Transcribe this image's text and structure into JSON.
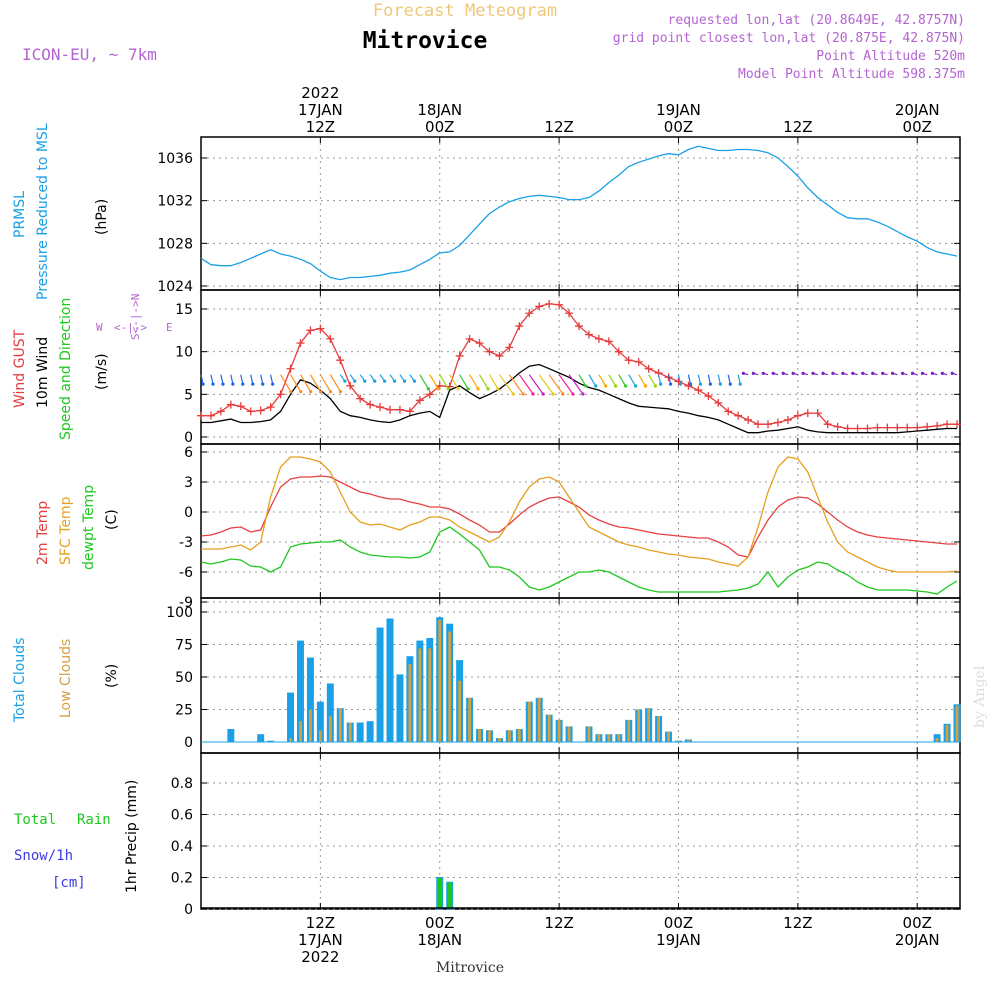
{
  "header": {
    "forecast_title": "Forecast Meteogram",
    "location_title": "Mitrovice",
    "model": "ICON-EU, ~ 7km",
    "requested": "requested lon,lat (20.8649E, 42.8757N)",
    "grid_point": "grid point closest lon,lat (20.875E, 42.875N)",
    "point_alt": "Point Altitude 520m",
    "model_alt": "Model Point Altitude 598.375m"
  },
  "top_ticks": [
    {
      "t": 12,
      "lines": [
        "2022",
        "17JAN",
        "12Z"
      ]
    },
    {
      "t": 24,
      "lines": [
        "18JAN",
        "00Z"
      ]
    },
    {
      "t": 36,
      "lines": [
        "12Z"
      ]
    },
    {
      "t": 48,
      "lines": [
        "19JAN",
        "00Z"
      ]
    },
    {
      "t": 60,
      "lines": [
        "12Z"
      ]
    },
    {
      "t": 72,
      "lines": [
        "20JAN",
        "00Z"
      ]
    }
  ],
  "bottom_ticks": [
    {
      "t": 12,
      "lines": [
        "12Z",
        "17JAN",
        "2022"
      ]
    },
    {
      "t": 24,
      "lines": [
        "00Z",
        "18JAN"
      ]
    },
    {
      "t": 36,
      "lines": [
        "12Z"
      ]
    },
    {
      "t": 48,
      "lines": [
        "00Z",
        "19JAN"
      ]
    },
    {
      "t": 60,
      "lines": [
        "12Z"
      ]
    },
    {
      "t": 72,
      "lines": [
        "00Z",
        "20JAN"
      ]
    }
  ],
  "footer_location": "Mitrovice",
  "watermark": "by Angel",
  "labels": {
    "p1": [
      "PRMSL",
      "Pressure Reduced to MSL",
      "(hPa)"
    ],
    "p2": [
      "Wind GUST",
      "10m Wind",
      "Speed and Direction",
      "(m/s)"
    ],
    "p2_compass": [
      "N",
      "S",
      "W",
      "E"
    ],
    "p3": [
      "2m Temp",
      "SFC Temp",
      "dewpt Temp",
      "(C)"
    ],
    "p4": [
      "Total Clouds",
      "Low Clouds",
      "(%)"
    ],
    "p5": [
      "Total",
      "Rain",
      "Snow/1h",
      "[cm]",
      "1hr Precip (mm)"
    ]
  },
  "colors": {
    "pressure": "#1aa0e6",
    "gust": "#e63c3c",
    "wind": "#000000",
    "t2m": "#e64040",
    "tsfc": "#e6a020",
    "dew": "#1ec81e",
    "total_clouds": "#1aa0e6",
    "low_clouds": "#d4a040",
    "rain": "#1ec81e",
    "snow": "#3c3ce6",
    "header_purple": "#b464d2",
    "title_tan": "#f0c878"
  },
  "chart_data": [
    {
      "type": "line",
      "title": "PRMSL Pressure Reduced to MSL",
      "ylabel": "(hPa)",
      "ylim": [
        1024,
        1038
      ],
      "yticks": [
        1024,
        1028,
        1032,
        1036
      ],
      "x": [
        0,
        1,
        2,
        3,
        4,
        5,
        6,
        7,
        8,
        9,
        10,
        11,
        12,
        13,
        14,
        15,
        16,
        17,
        18,
        19,
        20,
        21,
        22,
        23,
        24,
        25,
        26,
        27,
        28,
        29,
        30,
        31,
        32,
        33,
        34,
        35,
        36,
        37,
        38,
        39,
        40,
        41,
        42,
        43,
        44,
        45,
        46,
        47,
        48,
        49,
        50,
        51,
        52,
        53,
        54,
        55,
        56,
        57,
        58,
        59,
        60,
        61,
        62,
        63,
        64,
        65,
        66,
        67,
        68,
        69,
        70,
        71,
        72,
        73,
        74,
        75,
        76
      ],
      "series": [
        {
          "values": [
            1026.6,
            1026.0,
            1025.9,
            1025.9,
            1026.2,
            1026.6,
            1027.0,
            1027.4,
            1027.0,
            1026.8,
            1026.5,
            1026.1,
            1025.4,
            1024.8,
            1024.6,
            1024.8,
            1024.8,
            1024.9,
            1025.0,
            1025.2,
            1025.3,
            1025.5,
            1026.0,
            1026.5,
            1027.1,
            1027.2,
            1027.8,
            1028.8,
            1029.8,
            1030.8,
            1031.4,
            1031.9,
            1032.2,
            1032.4,
            1032.5,
            1032.4,
            1032.3,
            1032.1,
            1032.1,
            1032.3,
            1032.9,
            1033.7,
            1034.4,
            1035.2,
            1035.6,
            1035.9,
            1036.2,
            1036.4,
            1036.3,
            1036.8,
            1037.1,
            1036.9,
            1036.7,
            1036.7,
            1036.8,
            1036.8,
            1036.7,
            1036.5,
            1036.0,
            1035.2,
            1034.3,
            1033.2,
            1032.3,
            1031.6,
            1030.9,
            1030.4,
            1030.3,
            1030.3,
            1030.0,
            1029.6,
            1029.1,
            1028.6,
            1028.2,
            1027.6,
            1027.2,
            1027.0,
            1026.8
          ]
        }
      ]
    },
    {
      "type": "line",
      "title": "Wind GUST / 10m Wind Speed and Direction",
      "ylabel": "(m/s)",
      "ylim": [
        0,
        17
      ],
      "yticks": [
        0,
        5,
        10,
        15
      ],
      "x": [
        0,
        1,
        2,
        3,
        4,
        5,
        6,
        7,
        8,
        9,
        10,
        11,
        12,
        13,
        14,
        15,
        16,
        17,
        18,
        19,
        20,
        21,
        22,
        23,
        24,
        25,
        26,
        27,
        28,
        29,
        30,
        31,
        32,
        33,
        34,
        35,
        36,
        37,
        38,
        39,
        40,
        41,
        42,
        43,
        44,
        45,
        46,
        47,
        48,
        49,
        50,
        51,
        52,
        53,
        54,
        55,
        56,
        57,
        58,
        59,
        60,
        61,
        62,
        63,
        64,
        65,
        66,
        67,
        68,
        69,
        70,
        71,
        72,
        73,
        74,
        75,
        76
      ],
      "series": [
        {
          "name": "Wind GUST",
          "values": [
            2.5,
            2.5,
            3.0,
            3.8,
            3.6,
            3.0,
            3.1,
            3.5,
            5.0,
            8.0,
            11.0,
            12.5,
            12.7,
            11.5,
            9.0,
            6.0,
            4.5,
            3.8,
            3.5,
            3.2,
            3.2,
            3.0,
            4.3,
            5.0,
            6.0,
            5.9,
            9.5,
            11.5,
            11.0,
            10.0,
            9.5,
            10.5,
            13.0,
            14.5,
            15.3,
            15.6,
            15.5,
            14.5,
            13.0,
            12.0,
            11.5,
            11.2,
            10.0,
            9.0,
            8.8,
            8.0,
            7.5,
            7.0,
            6.5,
            6.0,
            5.5,
            4.8,
            4.0,
            3.0,
            2.5,
            2.0,
            1.5,
            1.5,
            1.7,
            2.0,
            2.5,
            2.8,
            2.8,
            1.5,
            1.2,
            1.0,
            1.0,
            1.0,
            1.1,
            1.1,
            1.1,
            1.1,
            1.1,
            1.2,
            1.3,
            1.5,
            1.5
          ]
        },
        {
          "name": "10m Wind",
          "values": [
            1.7,
            1.7,
            1.9,
            2.1,
            1.7,
            1.7,
            1.8,
            2.0,
            3.0,
            5.0,
            6.7,
            6.3,
            5.5,
            4.5,
            3.0,
            2.5,
            2.3,
            2.0,
            1.8,
            1.7,
            2.0,
            2.5,
            2.8,
            3.0,
            2.3,
            5.5,
            6.0,
            5.2,
            4.5,
            5.0,
            5.6,
            6.5,
            7.5,
            8.3,
            8.5,
            8.0,
            7.5,
            7.0,
            6.3,
            5.8,
            5.5,
            5.0,
            4.5,
            4.0,
            3.6,
            3.5,
            3.4,
            3.3,
            3.0,
            2.8,
            2.5,
            2.3,
            2.0,
            1.5,
            1.0,
            0.5,
            0.5,
            0.7,
            0.8,
            1.0,
            1.2,
            0.8,
            0.6,
            0.5,
            0.5,
            0.5,
            0.5,
            0.5,
            0.5,
            0.5,
            0.5,
            0.6,
            0.7,
            0.8,
            0.9,
            1.0,
            1.0
          ]
        }
      ]
    },
    {
      "type": "line",
      "title": "2m Temp / SFC Temp / dewpt Temp",
      "ylabel": "(C)",
      "ylim": [
        -9,
        6
      ],
      "yticks": [
        -9,
        -6,
        -3,
        0,
        3,
        6
      ],
      "x": [
        0,
        1,
        2,
        3,
        4,
        5,
        6,
        7,
        8,
        9,
        10,
        11,
        12,
        13,
        14,
        15,
        16,
        17,
        18,
        19,
        20,
        21,
        22,
        23,
        24,
        25,
        26,
        27,
        28,
        29,
        30,
        31,
        32,
        33,
        34,
        35,
        36,
        37,
        38,
        39,
        40,
        41,
        42,
        43,
        44,
        45,
        46,
        47,
        48,
        49,
        50,
        51,
        52,
        53,
        54,
        55,
        56,
        57,
        58,
        59,
        60,
        61,
        62,
        63,
        64,
        65,
        66,
        67,
        68,
        69,
        70,
        71,
        72,
        73,
        74,
        75,
        76
      ],
      "series": [
        {
          "name": "2m Temp",
          "values": [
            -2.4,
            -2.3,
            -2.0,
            -1.6,
            -1.5,
            -2.0,
            -1.8,
            0.5,
            2.5,
            3.3,
            3.5,
            3.5,
            3.6,
            3.5,
            3.0,
            2.5,
            2.0,
            1.8,
            1.5,
            1.3,
            1.3,
            1.0,
            0.8,
            0.5,
            0.5,
            0.3,
            -0.2,
            -0.8,
            -1.3,
            -2.0,
            -2.0,
            -1.2,
            -0.3,
            0.5,
            1.0,
            1.4,
            1.5,
            1.0,
            0.5,
            -0.3,
            -0.8,
            -1.2,
            -1.5,
            -1.6,
            -1.8,
            -2.0,
            -2.2,
            -2.3,
            -2.4,
            -2.5,
            -2.6,
            -2.6,
            -3.0,
            -3.5,
            -4.3,
            -4.5,
            -2.5,
            -0.8,
            0.5,
            1.2,
            1.5,
            1.4,
            0.8,
            0.0,
            -0.8,
            -1.5,
            -2.0,
            -2.3,
            -2.5,
            -2.6,
            -2.7,
            -2.8,
            -2.9,
            -3.0,
            -3.1,
            -3.2,
            -3.2
          ]
        },
        {
          "name": "SFC Temp",
          "values": [
            -3.7,
            -3.7,
            -3.7,
            -3.5,
            -3.3,
            -3.8,
            -3.0,
            1.5,
            4.5,
            5.5,
            5.5,
            5.3,
            5.0,
            4.0,
            2.0,
            0.0,
            -1.0,
            -1.3,
            -1.2,
            -1.5,
            -1.8,
            -1.3,
            -1.0,
            -0.5,
            -0.5,
            -0.8,
            -1.5,
            -2.0,
            -2.5,
            -3.0,
            -2.5,
            -1.0,
            1.0,
            2.5,
            3.3,
            3.5,
            3.0,
            1.5,
            0.0,
            -1.5,
            -2.0,
            -2.5,
            -3.0,
            -3.3,
            -3.5,
            -3.8,
            -4.0,
            -4.2,
            -4.3,
            -4.5,
            -4.6,
            -4.7,
            -5.0,
            -5.2,
            -5.4,
            -4.5,
            -1.5,
            2.0,
            4.5,
            5.5,
            5.3,
            4.0,
            1.5,
            -1.0,
            -3.0,
            -4.0,
            -4.5,
            -5.0,
            -5.5,
            -5.8,
            -6.0,
            -6.0,
            -6.0,
            -6.0,
            -6.0,
            -6.0,
            -5.9
          ]
        },
        {
          "name": "dewpt Temp",
          "values": [
            -5.0,
            -5.2,
            -5.0,
            -4.7,
            -4.8,
            -5.4,
            -5.5,
            -6.0,
            -5.5,
            -3.5,
            -3.2,
            -3.1,
            -3.0,
            -3.0,
            -2.8,
            -3.5,
            -4.0,
            -4.3,
            -4.4,
            -4.5,
            -4.5,
            -4.6,
            -4.5,
            -4.0,
            -2.0,
            -1.5,
            -2.2,
            -3.0,
            -3.8,
            -5.5,
            -5.5,
            -5.8,
            -6.5,
            -7.5,
            -7.8,
            -7.5,
            -7.0,
            -6.5,
            -6.0,
            -6.0,
            -5.8,
            -6.0,
            -6.5,
            -7.0,
            -7.5,
            -7.8,
            -8.0,
            -8.0,
            -8.0,
            -8.0,
            -8.0,
            -8.0,
            -8.0,
            -7.9,
            -7.8,
            -7.6,
            -7.2,
            -6.0,
            -7.5,
            -6.5,
            -5.8,
            -5.5,
            -5.0,
            -5.2,
            -5.8,
            -6.3,
            -7.0,
            -7.5,
            -7.8,
            -7.8,
            -7.8,
            -7.8,
            -7.9,
            -8.0,
            -8.2,
            -7.5,
            -6.9
          ]
        }
      ]
    },
    {
      "type": "bar",
      "title": "Total Clouds / Low Clouds",
      "ylabel": "(%)",
      "ylim": [
        -4,
        104
      ],
      "yticks": [
        0,
        25,
        50,
        75,
        100
      ],
      "x": [
        0,
        1,
        2,
        3,
        4,
        5,
        6,
        7,
        8,
        9,
        10,
        11,
        12,
        13,
        14,
        15,
        16,
        17,
        18,
        19,
        20,
        21,
        22,
        23,
        24,
        25,
        26,
        27,
        28,
        29,
        30,
        31,
        32,
        33,
        34,
        35,
        36,
        37,
        38,
        39,
        40,
        41,
        42,
        43,
        44,
        45,
        46,
        47,
        48,
        49,
        50,
        51,
        52,
        53,
        54,
        55,
        56,
        57,
        58,
        59,
        60,
        61,
        62,
        63,
        64,
        65,
        66,
        67,
        68,
        69,
        70,
        71,
        72,
        73,
        74,
        75,
        76
      ],
      "series": [
        {
          "name": "Total Clouds",
          "values": [
            0,
            0,
            0,
            10,
            0,
            0,
            6,
            1,
            0,
            38,
            78,
            65,
            31,
            45,
            26,
            15,
            15,
            16,
            88,
            95,
            52,
            66,
            78,
            80,
            96,
            91,
            63,
            34,
            10,
            9,
            3,
            9,
            10,
            31,
            34,
            21,
            17,
            12,
            0,
            12,
            6,
            6,
            6,
            17,
            25,
            26,
            20,
            8,
            1,
            2,
            0,
            0,
            0,
            0,
            0,
            0,
            0,
            0,
            0,
            0,
            0,
            0,
            0,
            0,
            0,
            0,
            0,
            0,
            0,
            0,
            0,
            0,
            0,
            0,
            6,
            14,
            29
          ]
        },
        {
          "name": "Low Clouds",
          "values": [
            0,
            0,
            0,
            0,
            0,
            0,
            0,
            0,
            0,
            3,
            16,
            25,
            9,
            20,
            26,
            15,
            0,
            0,
            0,
            0,
            0,
            60,
            72,
            72,
            94,
            85,
            47,
            34,
            10,
            9,
            3,
            9,
            10,
            31,
            34,
            21,
            17,
            12,
            0,
            12,
            6,
            6,
            6,
            17,
            25,
            26,
            20,
            8,
            1,
            2,
            0,
            0,
            0,
            0,
            0,
            0,
            0,
            0,
            0,
            0,
            0,
            0,
            0,
            0,
            0,
            0,
            0,
            0,
            0,
            0,
            0,
            0,
            0,
            0,
            3,
            13,
            28
          ]
        }
      ]
    },
    {
      "type": "bar",
      "title": "1hr Precip",
      "ylabel": "1hr Precip (mm)",
      "ylim": [
        0,
        1.0
      ],
      "yticks": [
        0,
        0.2,
        0.4,
        0.6,
        0.8
      ],
      "series": [
        {
          "name": "Total Rain",
          "x": [
            24,
            25
          ],
          "values": [
            0.2,
            0.17
          ]
        },
        {
          "name": "Snow/1h [cm]",
          "x": [],
          "values": []
        }
      ]
    }
  ]
}
